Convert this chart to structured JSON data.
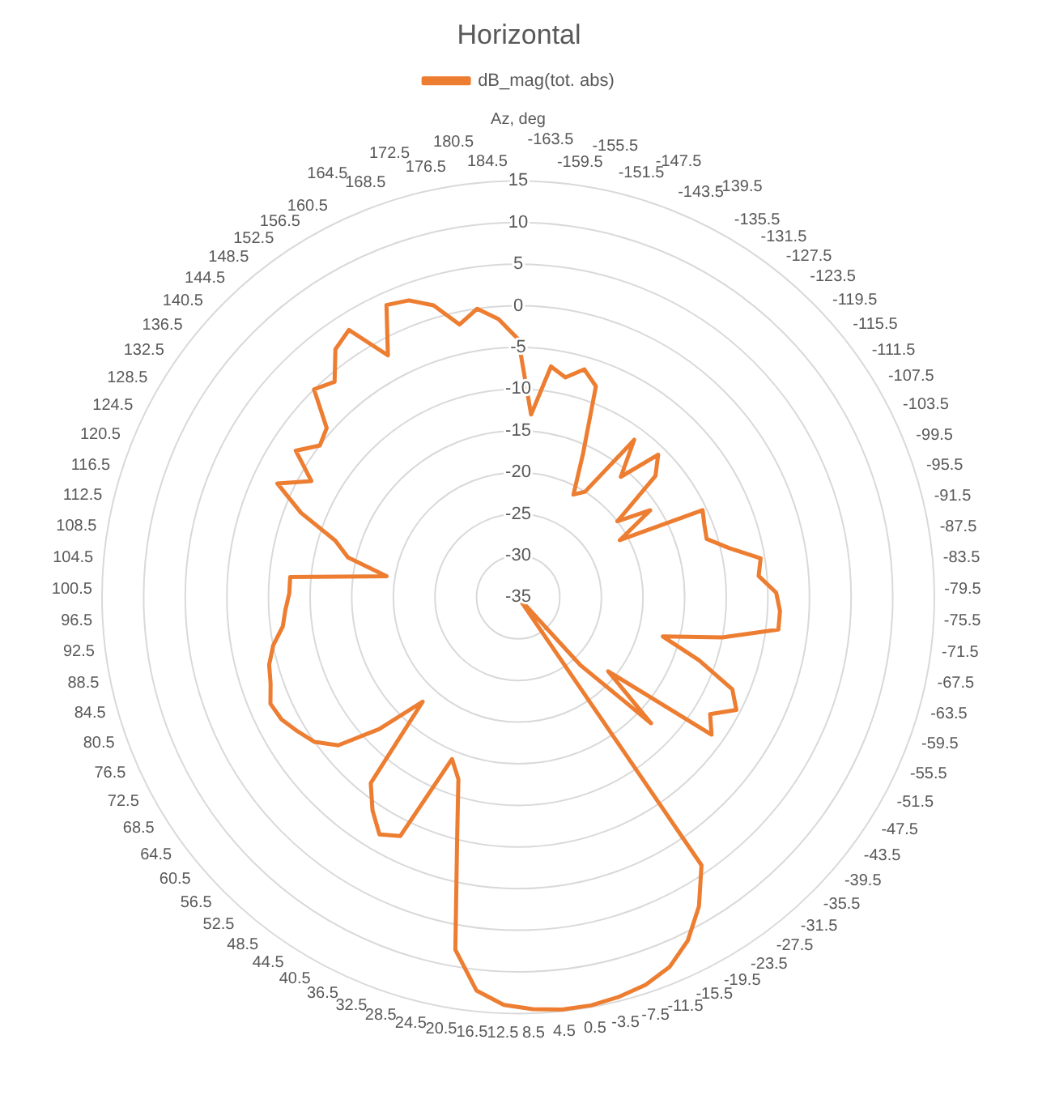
{
  "chart_data": {
    "type": "radar",
    "title": "Horizontal",
    "categories": [
      "Az, deg",
      "-163.5",
      "-159.5",
      "-155.5",
      "-151.5",
      "-147.5",
      "-143.5",
      "-139.5",
      "-135.5",
      "-131.5",
      "-127.5",
      "-123.5",
      "-119.5",
      "-115.5",
      "-111.5",
      "-107.5",
      "-103.5",
      "-99.5",
      "-95.5",
      "-91.5",
      "-87.5",
      "-83.5",
      "-79.5",
      "-75.5",
      "-71.5",
      "-67.5",
      "-63.5",
      "-59.5",
      "-55.5",
      "-51.5",
      "-47.5",
      "-43.5",
      "-39.5",
      "-35.5",
      "-31.5",
      "-27.5",
      "-23.5",
      "-19.5",
      "-15.5",
      "-11.5",
      "-7.5",
      "-3.5",
      "0.5",
      "4.5",
      "8.5",
      "12.5",
      "16.5",
      "20.5",
      "24.5",
      "28.5",
      "32.5",
      "36.5",
      "40.5",
      "44.5",
      "48.5",
      "52.5",
      "56.5",
      "60.5",
      "64.5",
      "68.5",
      "72.5",
      "76.5",
      "80.5",
      "84.5",
      "88.5",
      "92.5",
      "96.5",
      "100.5",
      "104.5",
      "108.5",
      "112.5",
      "116.5",
      "120.5",
      "124.5",
      "128.5",
      "132.5",
      "136.5",
      "140.5",
      "144.5",
      "148.5",
      "152.5",
      "156.5",
      "160.5",
      "164.5",
      "168.5",
      "172.5",
      "176.5",
      "180.5",
      "184.5"
    ],
    "series": [
      {
        "name": "dB_mag(tot. abs)",
        "color": "#ed7d31",
        "values": [
          -4,
          -13,
          -7,
          -8,
          -6.5,
          -8,
          -16,
          -21,
          -20,
          -11.5,
          -16,
          -11,
          -13,
          -20,
          -16,
          -21,
          -10.5,
          -11,
          -11.3,
          -9,
          -5.5,
          -6,
          -4,
          -3.5,
          -3.5,
          -10,
          -17,
          -12,
          -7,
          -5.5,
          -8,
          -6.5,
          -21,
          -13,
          -24,
          -35,
          4,
          8,
          11,
          13,
          14,
          14.5,
          14.8,
          14.8,
          14.5,
          14,
          12.5,
          8,
          -5,
          -12,
          -14,
          -3,
          -2,
          -4,
          -6.5,
          -18,
          -12,
          -7,
          -5,
          -4,
          -3,
          -2.6,
          -3.5,
          -4,
          -5,
          -6.5,
          -7,
          -7.5,
          -7.5,
          -19,
          -14,
          -12,
          -7,
          -3,
          -6.5,
          -3,
          -5,
          -4.3,
          0,
          -1,
          2,
          3,
          -2,
          3.5,
          3,
          1.5,
          -1.5,
          0,
          -1.5
        ]
      }
    ],
    "ylim": [
      -35,
      15
    ],
    "yticks": [
      -35,
      -30,
      -25,
      -20,
      -15,
      -10,
      -5,
      0,
      5,
      10,
      15
    ],
    "grid": true,
    "legend": "top",
    "marker": "none"
  }
}
